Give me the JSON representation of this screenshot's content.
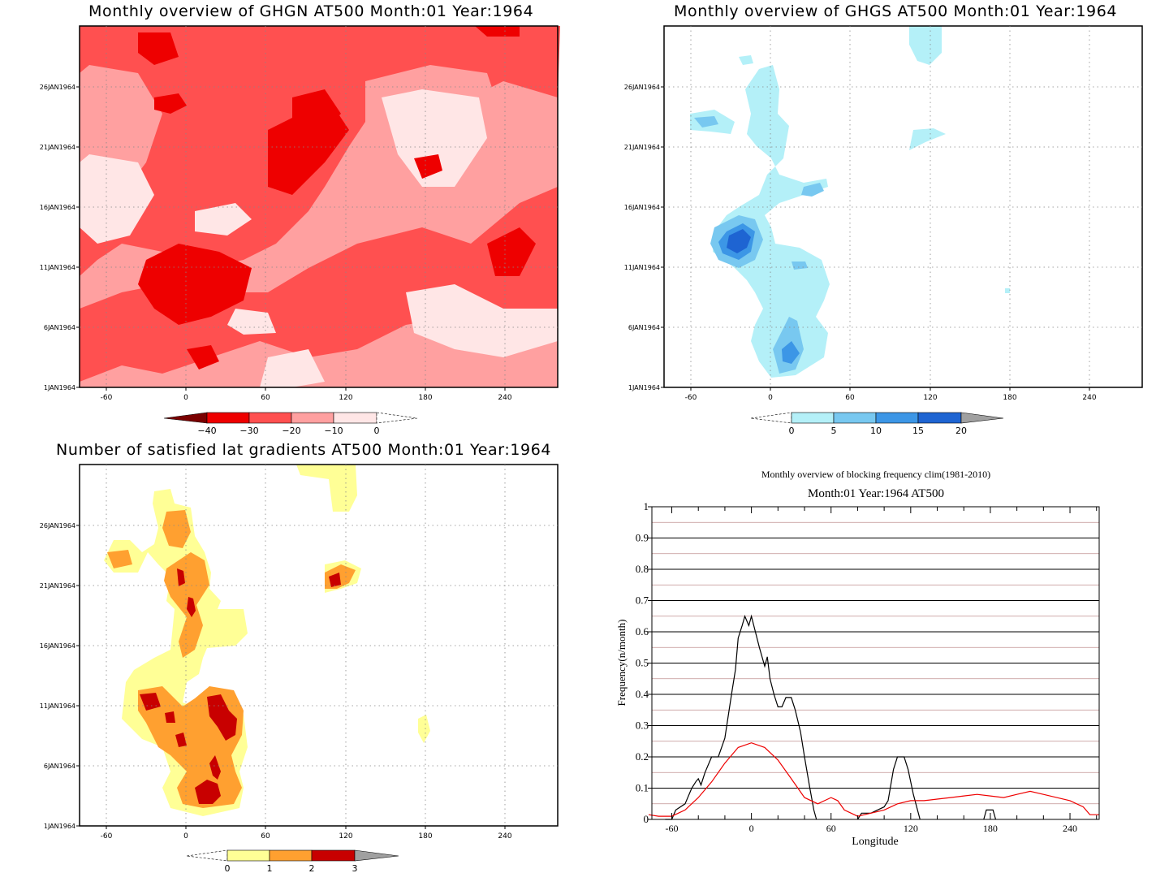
{
  "panels": {
    "ghgn": {
      "title": "Monthly overview of GHGN AT500 Month:01 Year:1964",
      "colorbar_labels": [
        "−40",
        "−30",
        "−20",
        "−10",
        "0"
      ],
      "colors": [
        "#7a0000",
        "#ee0000",
        "#ff5050",
        "#ffa0a0",
        "#ffe6e6"
      ]
    },
    "ghgs": {
      "title": "Monthly overview of GHGS AT500 Month:01 Year:1964",
      "colorbar_labels": [
        "0",
        "5",
        "10",
        "15",
        "20"
      ],
      "colors": [
        "#b4f0f8",
        "#78c8f0",
        "#3c96e6",
        "#1e64d2",
        "#a0a0a0"
      ]
    },
    "lat": {
      "title": "Number of satisfied lat gradients AT500 Month:01 Year:1964",
      "colorbar_labels": [
        "0",
        "1",
        "2",
        "3"
      ],
      "colors": [
        "#ffff96",
        "#ffa030",
        "#c80000",
        "#a0a0a0"
      ]
    },
    "freq": {
      "title": "Monthly overview of blocking frequency clim(1981-2010)",
      "subtitle": "Month:01 Year:1964  AT500"
    }
  },
  "map_axes": {
    "x_ticks": [
      "-60",
      "0",
      "60",
      "120",
      "180",
      "240"
    ],
    "y_ticks": [
      "1JAN1964",
      "6JAN1964",
      "11JAN1964",
      "16JAN1964",
      "21JAN1964",
      "26JAN1964"
    ]
  },
  "chart_data": {
    "type": "line",
    "title": "Monthly overview of blocking frequency clim(1981-2010)",
    "subtitle": "Month:01 Year:1964  AT500",
    "xlabel": "Longitude",
    "ylabel": "Frequency(n/month)",
    "xlim": [
      -75,
      262
    ],
    "ylim": [
      0,
      1
    ],
    "x_ticks": [
      -60,
      0,
      60,
      120,
      180,
      240
    ],
    "y_ticks": [
      "0",
      "0.1",
      "0.2",
      "0.3",
      "0.4",
      "0.5",
      "0.6",
      "0.7",
      "0.8",
      "0.9",
      "1"
    ],
    "series": [
      {
        "color": "#000000",
        "points": [
          [
            -65,
            0
          ],
          [
            -60,
            0
          ],
          [
            -57,
            0.03
          ],
          [
            -50,
            0.05
          ],
          [
            -45,
            0.1
          ],
          [
            -42,
            0.12
          ],
          [
            -40,
            0.13
          ],
          [
            -38,
            0.11
          ],
          [
            -35,
            0.15
          ],
          [
            -30,
            0.2
          ],
          [
            -25,
            0.2
          ],
          [
            -20,
            0.26
          ],
          [
            -15,
            0.4
          ],
          [
            -12,
            0.48
          ],
          [
            -10,
            0.58
          ],
          [
            -7,
            0.62
          ],
          [
            -5,
            0.65
          ],
          [
            -2,
            0.62
          ],
          [
            0,
            0.65
          ],
          [
            3,
            0.6
          ],
          [
            6,
            0.55
          ],
          [
            10,
            0.49
          ],
          [
            12,
            0.52
          ],
          [
            14,
            0.45
          ],
          [
            17,
            0.4
          ],
          [
            20,
            0.36
          ],
          [
            23,
            0.36
          ],
          [
            26,
            0.39
          ],
          [
            30,
            0.39
          ],
          [
            33,
            0.35
          ],
          [
            37,
            0.28
          ],
          [
            40,
            0.2
          ],
          [
            44,
            0.1
          ],
          [
            47,
            0.03
          ],
          [
            49,
            0
          ]
        ]
      },
      {
        "color": "#000000",
        "points": [
          [
            80,
            0
          ],
          [
            83,
            0.02
          ],
          [
            90,
            0.02
          ],
          [
            100,
            0.04
          ],
          [
            103,
            0.06
          ],
          [
            107,
            0.16
          ],
          [
            110,
            0.2
          ],
          [
            115,
            0.2
          ],
          [
            118,
            0.16
          ],
          [
            122,
            0.08
          ],
          [
            127,
            0
          ]
        ]
      },
      {
        "color": "#000000",
        "points": [
          [
            175,
            0
          ],
          [
            177,
            0.03
          ],
          [
            182,
            0.03
          ],
          [
            184,
            0
          ]
        ]
      },
      {
        "color": "#ee0000",
        "points": [
          [
            -80,
            0.015
          ],
          [
            -70,
            0.01
          ],
          [
            -60,
            0.01
          ],
          [
            -50,
            0.03
          ],
          [
            -40,
            0.07
          ],
          [
            -30,
            0.12
          ],
          [
            -20,
            0.18
          ],
          [
            -10,
            0.23
          ],
          [
            0,
            0.245
          ],
          [
            10,
            0.23
          ],
          [
            20,
            0.19
          ],
          [
            30,
            0.13
          ],
          [
            40,
            0.07
          ],
          [
            50,
            0.05
          ],
          [
            60,
            0.07
          ],
          [
            65,
            0.06
          ],
          [
            70,
            0.03
          ],
          [
            80,
            0.01
          ],
          [
            90,
            0.02
          ],
          [
            100,
            0.03
          ],
          [
            110,
            0.05
          ],
          [
            120,
            0.06
          ],
          [
            130,
            0.06
          ],
          [
            140,
            0.065
          ],
          [
            150,
            0.07
          ],
          [
            160,
            0.075
          ],
          [
            170,
            0.08
          ],
          [
            180,
            0.075
          ],
          [
            190,
            0.07
          ],
          [
            200,
            0.08
          ],
          [
            210,
            0.09
          ],
          [
            220,
            0.08
          ],
          [
            230,
            0.07
          ],
          [
            240,
            0.06
          ],
          [
            250,
            0.04
          ],
          [
            255,
            0.015
          ],
          [
            262,
            0.015
          ]
        ]
      }
    ]
  }
}
